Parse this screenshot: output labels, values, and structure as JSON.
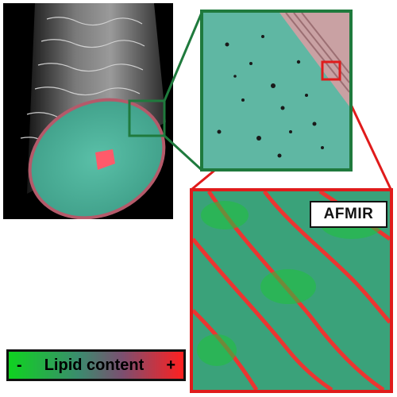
{
  "labels": {
    "afmir": "AFMIR",
    "legend_minus": "-",
    "legend_text": "Lipid content",
    "legend_plus": "+"
  },
  "colors": {
    "green_frame": "#1f7a3d",
    "red_frame": "#e01b1b",
    "cross_section": "#4fb49c",
    "lipid_high": "#ff2020",
    "lipid_low": "#0fd320"
  }
}
